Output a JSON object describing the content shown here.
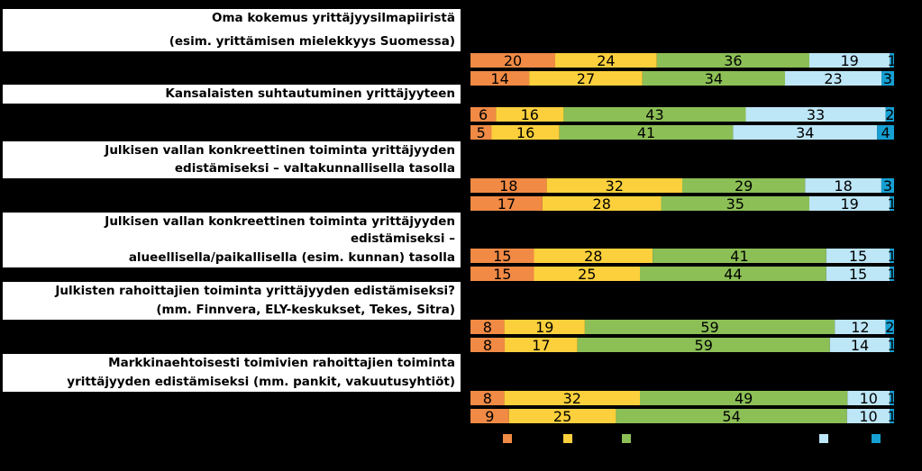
{
  "chart_data": {
    "type": "bar",
    "orientation": "horizontal",
    "stacked": true,
    "percent": true,
    "xlim": [
      0,
      100
    ],
    "groups": [
      {
        "label_lines": [
          "Oma kokemus yrittäjyysilmapiiristä",
          "(esim. yrittämisen mielekkyys Suomessa)"
        ],
        "bars": [
          [
            20,
            24,
            36,
            19,
            1
          ],
          [
            14,
            27,
            34,
            23,
            3
          ]
        ]
      },
      {
        "label_lines": [
          "Kansalaisten suhtautuminen yrittäjyyteen"
        ],
        "bars": [
          [
            6,
            16,
            43,
            33,
            2
          ],
          [
            5,
            16,
            41,
            34,
            4
          ]
        ]
      },
      {
        "label_lines": [
          "Julkisen vallan konkreettinen toiminta yrittäjyyden",
          "edistämiseksi – valtakunnallisella tasolla"
        ],
        "bars": [
          [
            18,
            32,
            29,
            18,
            3
          ],
          [
            17,
            28,
            35,
            19,
            1
          ]
        ]
      },
      {
        "label_lines": [
          "Julkisen vallan konkreettinen toiminta yrittäjyyden edistämiseksi –",
          "alueellisella/paikallisella (esim. kunnan) tasolla"
        ],
        "bars": [
          [
            15,
            28,
            41,
            15,
            1
          ],
          [
            15,
            25,
            44,
            15,
            1
          ]
        ]
      },
      {
        "label_lines": [
          "Julkisten rahoittajien toiminta yrittäjyyden edistämiseksi?",
          "(mm. Finnvera, ELY-keskukset, Tekes, Sitra)"
        ],
        "bars": [
          [
            8,
            19,
            59,
            12,
            2
          ],
          [
            8,
            17,
            59,
            14,
            1
          ]
        ]
      },
      {
        "label_lines": [
          "Markkinaehtoisesti toimivien rahoittajien toiminta",
          "yrittäjyyden edistämiseksi (mm. pankit, vakuutusyhtiöt)"
        ],
        "bars": [
          [
            8,
            32,
            49,
            10,
            1
          ],
          [
            9,
            25,
            54,
            10,
            1
          ]
        ]
      }
    ],
    "segment_colors": [
      "#f08a45",
      "#fcd03c",
      "#8cbf56",
      "#bde6f7",
      "#169fd2"
    ],
    "legend": {
      "placement": "bottom",
      "entries": [
        "",
        "",
        "",
        "",
        ""
      ]
    }
  }
}
